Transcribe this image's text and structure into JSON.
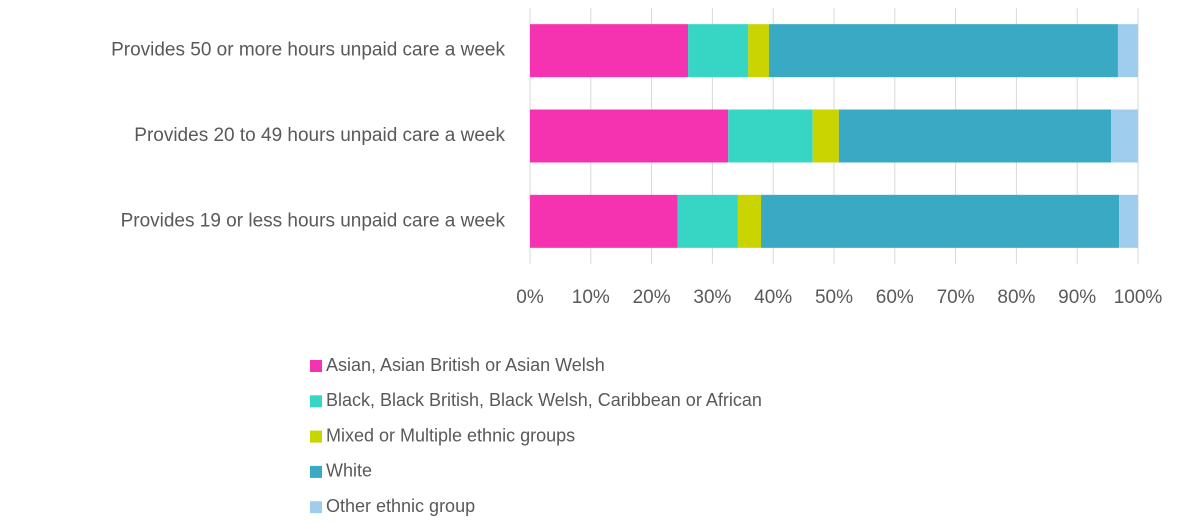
{
  "chart_data": {
    "type": "bar",
    "orientation": "horizontal",
    "stacked": true,
    "categories": [
      "Provides 50 or more hours unpaid care a week",
      "Provides 20 to 49 hours unpaid care a week",
      "Provides 19 or less hours unpaid care a week"
    ],
    "series": [
      {
        "name": "Asian, Asian British or Asian Welsh",
        "color": "#f533b0",
        "values": [
          26.0,
          32.6,
          24.3
        ]
      },
      {
        "name": "Black, Black British, Black Welsh, Caribbean or African",
        "color": "#37d6c4",
        "values": [
          9.9,
          13.9,
          9.9
        ]
      },
      {
        "name": "Mixed or Multiple ethnic groups",
        "color": "#c9d400",
        "values": [
          3.4,
          4.3,
          3.8
        ]
      },
      {
        "name": "White",
        "color": "#39a9c4",
        "values": [
          57.4,
          44.8,
          58.9
        ]
      },
      {
        "name": "Other ethnic group",
        "color": "#9ecdee",
        "values": [
          3.3,
          4.4,
          3.1
        ]
      }
    ],
    "xlim": [
      0,
      100
    ],
    "xticks": [
      {
        "value": 0,
        "label": "0%"
      },
      {
        "value": 10,
        "label": "10%"
      },
      {
        "value": 20,
        "label": "20%"
      },
      {
        "value": 30,
        "label": "30%"
      },
      {
        "value": 40,
        "label": "40%"
      },
      {
        "value": 50,
        "label": "50%"
      },
      {
        "value": 60,
        "label": "60%"
      },
      {
        "value": 70,
        "label": "70%"
      },
      {
        "value": 80,
        "label": "80%"
      },
      {
        "value": 90,
        "label": "90%"
      },
      {
        "value": 100,
        "label": "100%"
      }
    ],
    "grid": true,
    "legend": "bottom"
  }
}
